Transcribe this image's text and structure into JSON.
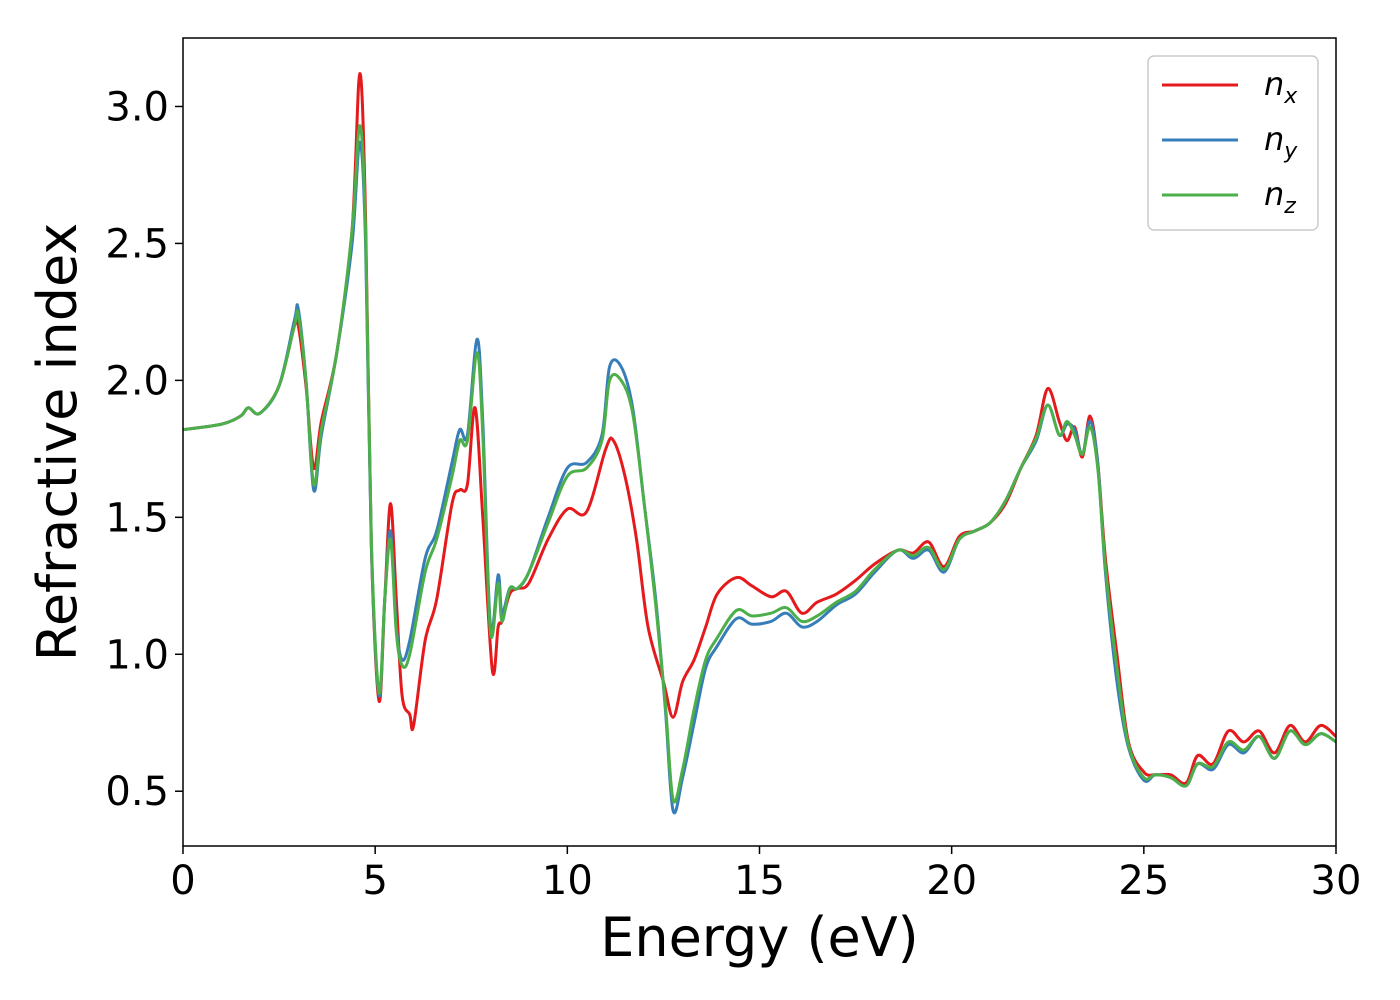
{
  "chart_data": {
    "type": "line",
    "title": "",
    "xlabel": "Energy (eV)",
    "ylabel": "Refractive index",
    "xlim": [
      0,
      30
    ],
    "ylim": [
      0.3,
      3.25
    ],
    "xticks": [
      0,
      5,
      10,
      15,
      20,
      25,
      30
    ],
    "xtick_labels": [
      "0",
      "5",
      "10",
      "15",
      "20",
      "25",
      "30"
    ],
    "yticks": [
      0.5,
      1.0,
      1.5,
      2.0,
      2.5,
      3.0
    ],
    "ytick_labels": [
      "0.5",
      "1.0",
      "1.5",
      "2.0",
      "2.5",
      "3.0"
    ],
    "grid": false,
    "legend_position": "top-right",
    "series": [
      {
        "name": "n_x",
        "legend_main": "n",
        "legend_sub": "x",
        "color": "#e41a1c",
        "x": [
          0,
          1,
          1.5,
          1.7,
          2.0,
          2.5,
          2.9,
          3.0,
          3.2,
          3.4,
          3.6,
          4.0,
          4.4,
          4.6,
          4.75,
          4.9,
          5.1,
          5.25,
          5.4,
          5.55,
          5.7,
          5.9,
          6.0,
          6.3,
          6.6,
          7.0,
          7.2,
          7.4,
          7.6,
          7.8,
          8.05,
          8.2,
          8.3,
          8.5,
          8.7,
          9.0,
          9.5,
          10.0,
          10.5,
          11.0,
          11.2,
          11.5,
          11.8,
          12.1,
          12.5,
          12.75,
          13.0,
          13.3,
          13.6,
          13.9,
          14.4,
          14.8,
          15.3,
          15.7,
          16.1,
          16.5,
          17.0,
          17.5,
          18.0,
          18.6,
          19.0,
          19.4,
          19.8,
          20.2,
          20.6,
          21.0,
          21.4,
          21.8,
          22.2,
          22.5,
          22.8,
          23.0,
          23.2,
          23.4,
          23.6,
          23.8,
          24.0,
          24.3,
          24.6,
          25.0,
          25.3,
          25.7,
          26.1,
          26.4,
          26.8,
          27.2,
          27.6,
          28.0,
          28.4,
          28.8,
          29.2,
          29.6,
          30.0
        ],
        "y": [
          1.82,
          1.84,
          1.87,
          1.9,
          1.88,
          1.98,
          2.2,
          2.2,
          1.98,
          1.68,
          1.85,
          2.1,
          2.55,
          3.12,
          2.6,
          1.4,
          0.83,
          1.2,
          1.55,
          1.2,
          0.85,
          0.78,
          0.74,
          1.05,
          1.2,
          1.55,
          1.6,
          1.62,
          1.9,
          1.5,
          0.94,
          1.1,
          1.12,
          1.22,
          1.24,
          1.26,
          1.42,
          1.53,
          1.52,
          1.75,
          1.78,
          1.65,
          1.42,
          1.1,
          0.9,
          0.77,
          0.9,
          0.98,
          1.1,
          1.22,
          1.28,
          1.25,
          1.21,
          1.23,
          1.15,
          1.19,
          1.22,
          1.27,
          1.33,
          1.38,
          1.37,
          1.41,
          1.32,
          1.43,
          1.45,
          1.48,
          1.55,
          1.68,
          1.8,
          1.97,
          1.85,
          1.78,
          1.83,
          1.72,
          1.87,
          1.7,
          1.35,
          1.0,
          0.68,
          0.57,
          0.56,
          0.56,
          0.53,
          0.63,
          0.6,
          0.72,
          0.68,
          0.72,
          0.64,
          0.74,
          0.68,
          0.74,
          0.7
        ]
      },
      {
        "name": "n_y",
        "legend_main": "n",
        "legend_sub": "y",
        "color": "#377eb8",
        "x": [
          0,
          1,
          1.5,
          1.7,
          2.0,
          2.5,
          2.9,
          3.0,
          3.2,
          3.4,
          3.6,
          4.0,
          4.4,
          4.6,
          4.75,
          4.9,
          5.1,
          5.25,
          5.4,
          5.55,
          5.7,
          5.9,
          6.3,
          6.6,
          7.0,
          7.2,
          7.4,
          7.65,
          7.8,
          8.0,
          8.2,
          8.3,
          8.5,
          8.7,
          9.0,
          9.5,
          10.0,
          10.5,
          10.9,
          11.1,
          11.4,
          11.7,
          12.0,
          12.3,
          12.55,
          12.75,
          13.0,
          13.3,
          13.6,
          13.9,
          14.4,
          14.8,
          15.3,
          15.7,
          16.1,
          16.5,
          17.0,
          17.5,
          18.0,
          18.6,
          19.0,
          19.4,
          19.8,
          20.2,
          20.6,
          21.0,
          21.4,
          21.8,
          22.2,
          22.5,
          22.8,
          23.0,
          23.2,
          23.4,
          23.6,
          23.8,
          24.0,
          24.3,
          24.6,
          25.0,
          25.3,
          25.7,
          26.1,
          26.4,
          26.8,
          27.2,
          27.6,
          28.0,
          28.4,
          28.8,
          29.2,
          29.6,
          30.0
        ],
        "y": [
          1.82,
          1.84,
          1.87,
          1.9,
          1.88,
          1.98,
          2.22,
          2.26,
          2.0,
          1.6,
          1.8,
          2.1,
          2.5,
          2.87,
          2.5,
          1.4,
          0.85,
          1.2,
          1.45,
          1.1,
          0.98,
          1.05,
          1.35,
          1.45,
          1.7,
          1.82,
          1.8,
          2.15,
          1.85,
          1.1,
          1.29,
          1.15,
          1.24,
          1.24,
          1.3,
          1.5,
          1.68,
          1.7,
          1.8,
          2.05,
          2.05,
          1.9,
          1.55,
          1.2,
          0.8,
          0.43,
          0.55,
          0.75,
          0.95,
          1.03,
          1.13,
          1.11,
          1.12,
          1.15,
          1.1,
          1.12,
          1.18,
          1.22,
          1.3,
          1.38,
          1.35,
          1.38,
          1.3,
          1.42,
          1.45,
          1.48,
          1.56,
          1.68,
          1.78,
          1.91,
          1.8,
          1.84,
          1.82,
          1.73,
          1.85,
          1.7,
          1.3,
          0.9,
          0.66,
          0.54,
          0.56,
          0.55,
          0.52,
          0.6,
          0.58,
          0.67,
          0.64,
          0.7,
          0.62,
          0.72,
          0.67,
          0.71,
          0.68
        ]
      },
      {
        "name": "n_z",
        "legend_main": "n",
        "legend_sub": "z",
        "color": "#4daf4a",
        "x": [
          0,
          1,
          1.5,
          1.7,
          2.0,
          2.5,
          2.9,
          3.0,
          3.2,
          3.4,
          3.6,
          4.0,
          4.4,
          4.6,
          4.75,
          4.9,
          5.1,
          5.25,
          5.4,
          5.55,
          5.7,
          5.9,
          6.3,
          6.6,
          7.0,
          7.2,
          7.4,
          7.65,
          7.8,
          8.0,
          8.2,
          8.3,
          8.5,
          8.7,
          9.0,
          9.5,
          10.0,
          10.5,
          10.9,
          11.1,
          11.4,
          11.7,
          12.0,
          12.3,
          12.55,
          12.75,
          13.0,
          13.3,
          13.6,
          13.9,
          14.4,
          14.8,
          15.3,
          15.7,
          16.1,
          16.5,
          17.0,
          17.5,
          18.0,
          18.6,
          19.0,
          19.4,
          19.8,
          20.2,
          20.6,
          21.0,
          21.4,
          21.8,
          22.2,
          22.5,
          22.8,
          23.0,
          23.2,
          23.4,
          23.6,
          23.8,
          24.0,
          24.3,
          24.6,
          25.0,
          25.3,
          25.7,
          26.1,
          26.4,
          26.8,
          27.2,
          27.6,
          28.0,
          28.4,
          28.8,
          29.2,
          29.6,
          30.0
        ],
        "y": [
          1.82,
          1.84,
          1.87,
          1.9,
          1.88,
          1.98,
          2.2,
          2.24,
          2.0,
          1.62,
          1.82,
          2.1,
          2.55,
          2.93,
          2.55,
          1.42,
          0.86,
          1.2,
          1.42,
          1.08,
          0.96,
          1.0,
          1.3,
          1.42,
          1.65,
          1.78,
          1.78,
          2.1,
          1.8,
          1.08,
          1.26,
          1.12,
          1.24,
          1.24,
          1.3,
          1.48,
          1.65,
          1.68,
          1.78,
          2.0,
          2.0,
          1.88,
          1.55,
          1.18,
          0.82,
          0.47,
          0.58,
          0.8,
          0.98,
          1.06,
          1.16,
          1.14,
          1.15,
          1.17,
          1.12,
          1.14,
          1.19,
          1.23,
          1.31,
          1.38,
          1.36,
          1.39,
          1.31,
          1.42,
          1.45,
          1.48,
          1.56,
          1.68,
          1.79,
          1.91,
          1.8,
          1.85,
          1.8,
          1.73,
          1.83,
          1.68,
          1.32,
          0.95,
          0.67,
          0.55,
          0.56,
          0.55,
          0.52,
          0.6,
          0.59,
          0.68,
          0.65,
          0.7,
          0.62,
          0.72,
          0.67,
          0.71,
          0.68
        ]
      }
    ]
  }
}
